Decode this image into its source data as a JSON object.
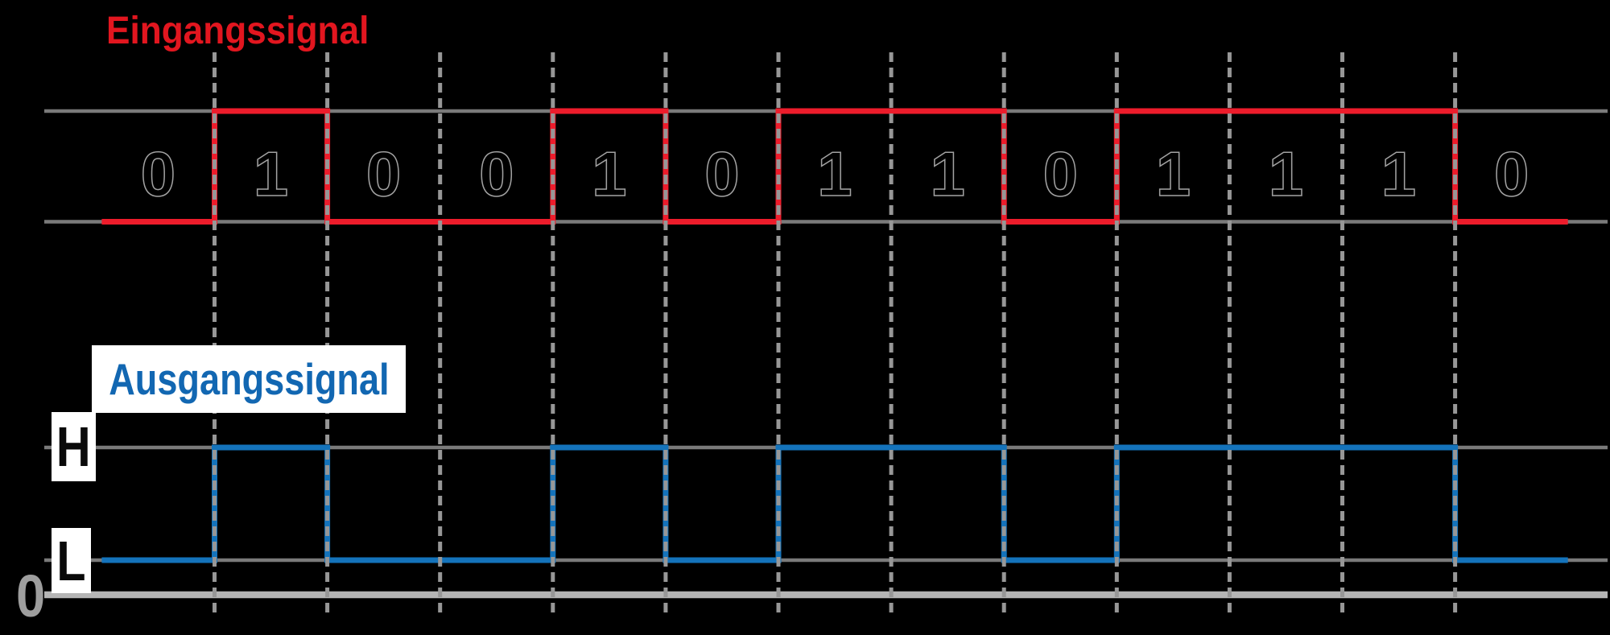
{
  "titles": {
    "input": "Eingangssignal",
    "output": "Ausgangssignal"
  },
  "axis_labels": {
    "high": "H",
    "low": "L",
    "zero": "0"
  },
  "colors": {
    "background": "#000000",
    "input_signal": "#ed1c2b",
    "input_title": "#e2161f",
    "output_signal": "#1473bb",
    "output_title": "#1267b2",
    "level_line": "#7a7a7a",
    "grid_line": "#979797",
    "baseline": "#b5b5b5",
    "bit_text": "#000000",
    "bit_outline": "#d8d8d8",
    "zero_label": "#9e9e9e",
    "label_box_bg": "#ffffff"
  },
  "chart_data": {
    "type": "line",
    "subtype": "digital-timing-diagram",
    "x_cells": 13,
    "bits": [
      0,
      1,
      0,
      0,
      1,
      0,
      1,
      1,
      0,
      1,
      1,
      1,
      0
    ],
    "bit_labels": [
      "0",
      "1",
      "0",
      "0",
      "1",
      "0",
      "1",
      "1",
      "0",
      "1",
      "1",
      "1",
      "0"
    ],
    "series": [
      {
        "name": "Eingangssignal",
        "role": "input",
        "levels": [
          "0",
          "1"
        ]
      },
      {
        "name": "Ausgangssignal",
        "role": "output",
        "levels": [
          "L",
          "H"
        ]
      }
    ],
    "y_levels_output": [
      "H",
      "L",
      "0"
    ],
    "grid": "dashed-vertical-at-each-cell-boundary",
    "legend_position": "titles-above-each-waveform"
  }
}
